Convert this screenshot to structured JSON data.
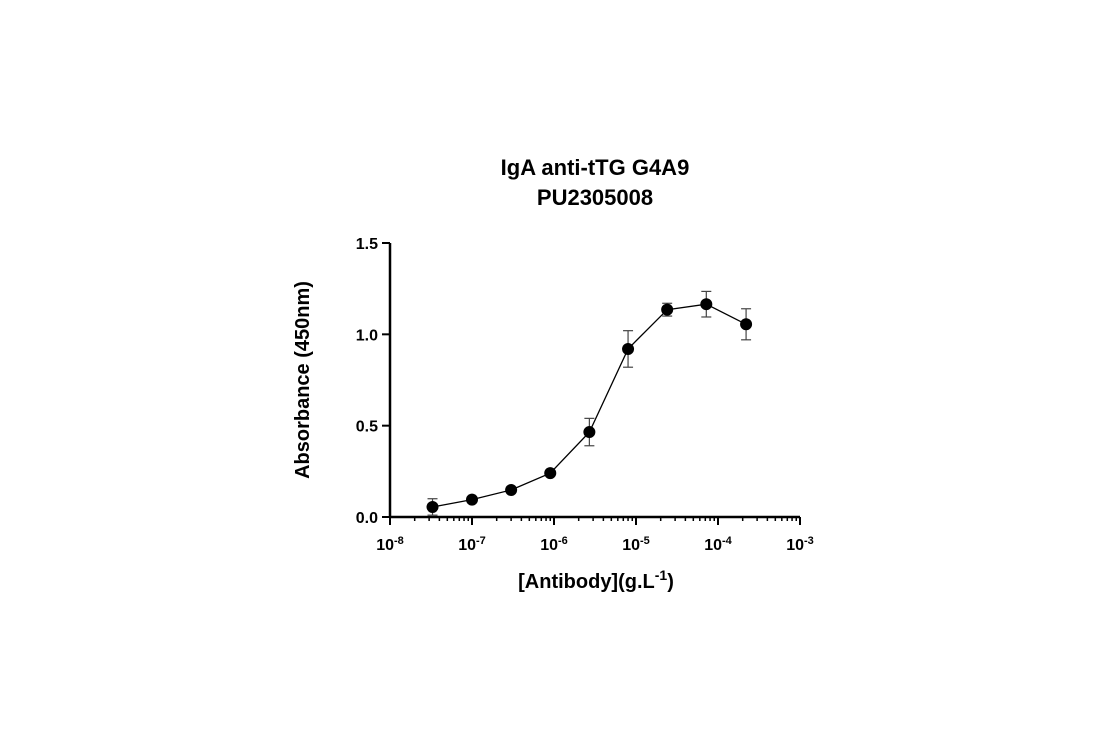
{
  "chart_data": {
    "type": "scatter",
    "title_lines": [
      "IgA anti-tTG G4A9",
      "PU2305008"
    ],
    "xlabel": {
      "main": "[Antibody](g.L",
      "sup": "-1",
      "end": ")"
    },
    "ylabel": "Absorbance (450nm)",
    "x_scale": "log",
    "xlim": [
      1e-08,
      0.001
    ],
    "ylim": [
      0,
      1.5
    ],
    "x_ticks": [
      {
        "base": "10",
        "exp": "-8",
        "value": 1e-08
      },
      {
        "base": "10",
        "exp": "-7",
        "value": 1e-07
      },
      {
        "base": "10",
        "exp": "-6",
        "value": 1e-06
      },
      {
        "base": "10",
        "exp": "-5",
        "value": 1e-05
      },
      {
        "base": "10",
        "exp": "-4",
        "value": 0.0001
      },
      {
        "base": "10",
        "exp": "-3",
        "value": 0.001
      }
    ],
    "y_ticks": [
      {
        "label": "0.0",
        "value": 0
      },
      {
        "label": "0.5",
        "value": 0.5
      },
      {
        "label": "1.0",
        "value": 1.0
      },
      {
        "label": "1.5",
        "value": 1.5
      }
    ],
    "grid": false,
    "legend": "none",
    "marker_color": "#000000",
    "line_color": "#000000",
    "series": [
      {
        "x": [
          3.3e-08,
          1e-07,
          3e-07,
          9e-07,
          2.7e-06,
          8e-06,
          2.4e-05,
          7.2e-05,
          0.00022
        ],
        "y": [
          0.055,
          0.095,
          0.148,
          0.24,
          0.465,
          0.92,
          1.135,
          1.165,
          1.055
        ],
        "error": [
          0.045,
          0.0,
          0.0,
          0.0,
          0.075,
          0.1,
          0.035,
          0.07,
          0.085
        ]
      }
    ]
  }
}
